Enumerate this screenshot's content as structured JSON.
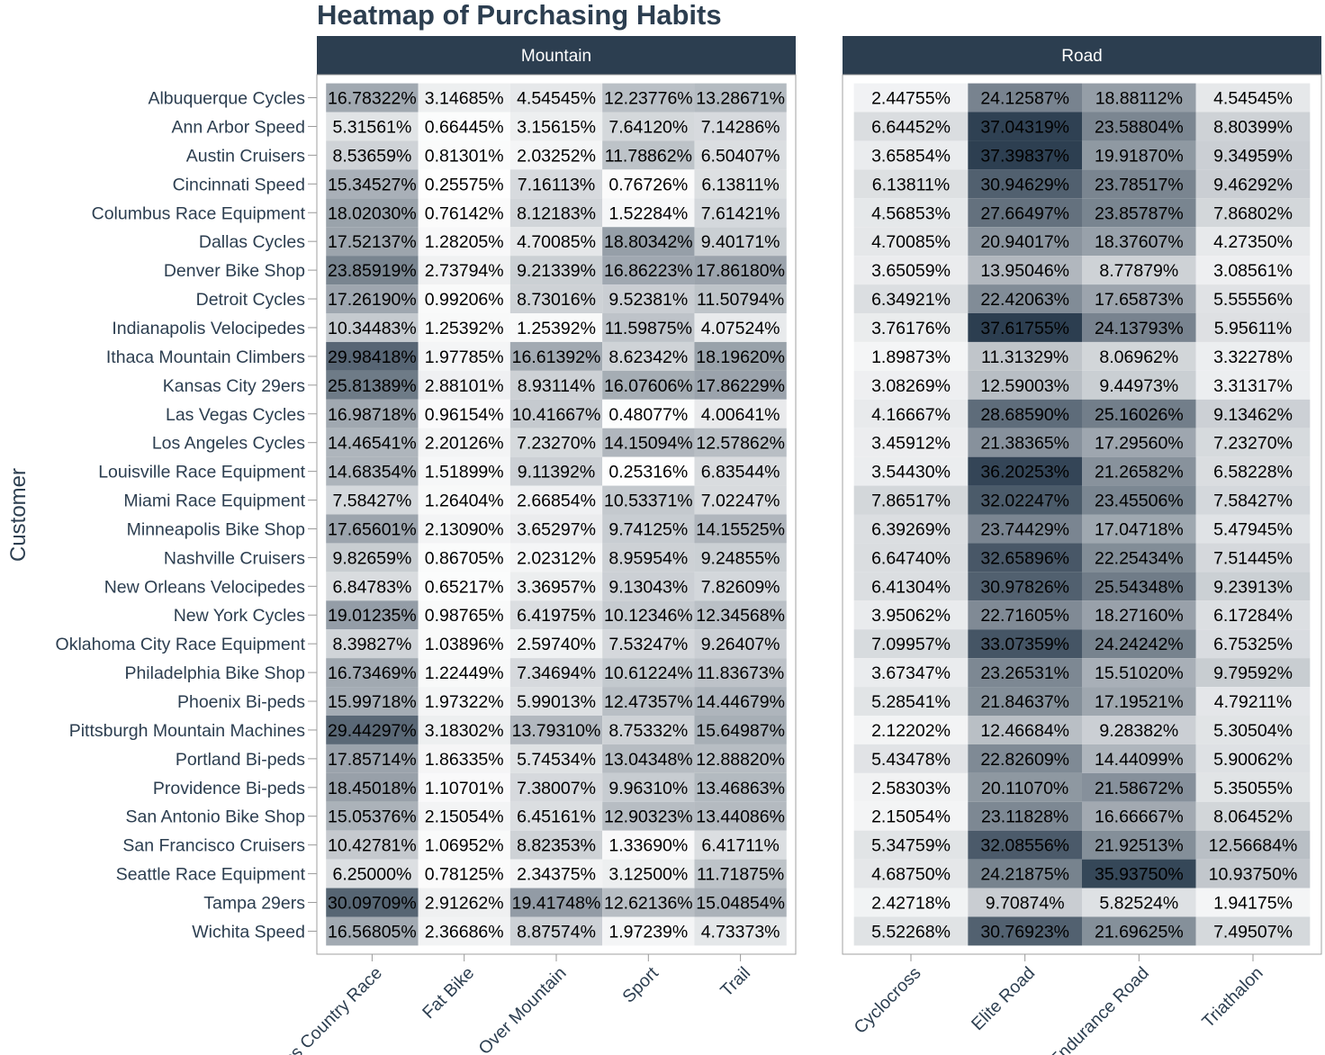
{
  "chart_data": {
    "type": "heatmap",
    "title": "Heatmap of Purchasing Habits",
    "ylabel": "Customer",
    "xlabel": "",
    "colors": {
      "low": "#ffffff",
      "high": "#2c3e50",
      "strip": "#2c3e50",
      "text": "#2c3e50"
    },
    "customers": [
      "Albuquerque Cycles",
      "Ann Arbor Speed",
      "Austin Cruisers",
      "Cincinnati Speed",
      "Columbus Race Equipment",
      "Dallas Cycles",
      "Denver Bike Shop",
      "Detroit Cycles",
      "Indianapolis Velocipedes",
      "Ithaca Mountain Climbers",
      "Kansas City 29ers",
      "Las Vegas Cycles",
      "Los Angeles Cycles",
      "Louisville Race Equipment",
      "Miami Race Equipment",
      "Minneapolis Bike Shop",
      "Nashville Cruisers",
      "New Orleans Velocipedes",
      "New York Cycles",
      "Oklahoma City Race Equipment",
      "Philadelphia Bike Shop",
      "Phoenix Bi-peds",
      "Pittsburgh Mountain Machines",
      "Portland Bi-peds",
      "Providence Bi-peds",
      "San Antonio Bike Shop",
      "San Francisco Cruisers",
      "Seattle Race Equipment",
      "Tampa 29ers",
      "Wichita Speed"
    ],
    "facets": [
      {
        "name": "Mountain",
        "categories": [
          "Cross Country Race",
          "Fat Bike",
          "Over Mountain",
          "Sport",
          "Trail"
        ],
        "rows": [
          [
            "16.78322%",
            "3.14685%",
            "4.54545%",
            "12.23776%",
            "13.28671%"
          ],
          [
            "5.31561%",
            "0.66445%",
            "3.15615%",
            "7.64120%",
            "7.14286%"
          ],
          [
            "8.53659%",
            "0.81301%",
            "2.03252%",
            "11.78862%",
            "6.50407%"
          ],
          [
            "15.34527%",
            "0.25575%",
            "7.16113%",
            "0.76726%",
            "6.13811%"
          ],
          [
            "18.02030%",
            "0.76142%",
            "8.12183%",
            "1.52284%",
            "7.61421%"
          ],
          [
            "17.52137%",
            "1.28205%",
            "4.70085%",
            "18.80342%",
            "9.40171%"
          ],
          [
            "23.85919%",
            "2.73794%",
            "9.21339%",
            "16.86223%",
            "17.86180%"
          ],
          [
            "17.26190%",
            "0.99206%",
            "8.73016%",
            "9.52381%",
            "11.50794%"
          ],
          [
            "10.34483%",
            "1.25392%",
            "1.25392%",
            "11.59875%",
            "4.07524%"
          ],
          [
            "29.98418%",
            "1.97785%",
            "16.61392%",
            "8.62342%",
            "18.19620%"
          ],
          [
            "25.81389%",
            "2.88101%",
            "8.93114%",
            "16.07606%",
            "17.86229%"
          ],
          [
            "16.98718%",
            "0.96154%",
            "10.41667%",
            "0.48077%",
            "4.00641%"
          ],
          [
            "14.46541%",
            "2.20126%",
            "7.23270%",
            "14.15094%",
            "12.57862%"
          ],
          [
            "14.68354%",
            "1.51899%",
            "9.11392%",
            "0.25316%",
            "6.83544%"
          ],
          [
            "7.58427%",
            "1.26404%",
            "2.66854%",
            "10.53371%",
            "7.02247%"
          ],
          [
            "17.65601%",
            "2.13090%",
            "3.65297%",
            "9.74125%",
            "14.15525%"
          ],
          [
            "9.82659%",
            "0.86705%",
            "2.02312%",
            "8.95954%",
            "9.24855%"
          ],
          [
            "6.84783%",
            "0.65217%",
            "3.36957%",
            "9.13043%",
            "7.82609%"
          ],
          [
            "19.01235%",
            "0.98765%",
            "6.41975%",
            "10.12346%",
            "12.34568%"
          ],
          [
            "8.39827%",
            "1.03896%",
            "2.59740%",
            "7.53247%",
            "9.26407%"
          ],
          [
            "16.73469%",
            "1.22449%",
            "7.34694%",
            "10.61224%",
            "11.83673%"
          ],
          [
            "15.99718%",
            "1.97322%",
            "5.99013%",
            "12.47357%",
            "14.44679%"
          ],
          [
            "29.44297%",
            "3.18302%",
            "13.79310%",
            "8.75332%",
            "15.64987%"
          ],
          [
            "17.85714%",
            "1.86335%",
            "5.74534%",
            "13.04348%",
            "12.88820%"
          ],
          [
            "18.45018%",
            "1.10701%",
            "7.38007%",
            "9.96310%",
            "13.46863%"
          ],
          [
            "15.05376%",
            "2.15054%",
            "6.45161%",
            "12.90323%",
            "13.44086%"
          ],
          [
            "10.42781%",
            "1.06952%",
            "8.82353%",
            "1.33690%",
            "6.41711%"
          ],
          [
            "6.25000%",
            "0.78125%",
            "2.34375%",
            "3.12500%",
            "11.71875%"
          ],
          [
            "30.09709%",
            "2.91262%",
            "19.41748%",
            "12.62136%",
            "15.04854%"
          ],
          [
            "16.56805%",
            "2.36686%",
            "8.87574%",
            "1.97239%",
            "4.73373%"
          ]
        ]
      },
      {
        "name": "Road",
        "categories": [
          "Cyclocross",
          "Elite Road",
          "Endurance Road",
          "Triathalon"
        ],
        "rows": [
          [
            "2.44755%",
            "24.12587%",
            "18.88112%",
            "4.54545%"
          ],
          [
            "6.64452%",
            "37.04319%",
            "23.58804%",
            "8.80399%"
          ],
          [
            "3.65854%",
            "37.39837%",
            "19.91870%",
            "9.34959%"
          ],
          [
            "6.13811%",
            "30.94629%",
            "23.78517%",
            "9.46292%"
          ],
          [
            "4.56853%",
            "27.66497%",
            "23.85787%",
            "7.86802%"
          ],
          [
            "4.70085%",
            "20.94017%",
            "18.37607%",
            "4.27350%"
          ],
          [
            "3.65059%",
            "13.95046%",
            "8.77879%",
            "3.08561%"
          ],
          [
            "6.34921%",
            "22.42063%",
            "17.65873%",
            "5.55556%"
          ],
          [
            "3.76176%",
            "37.61755%",
            "24.13793%",
            "5.95611%"
          ],
          [
            "1.89873%",
            "11.31329%",
            "8.06962%",
            "3.32278%"
          ],
          [
            "3.08269%",
            "12.59003%",
            "9.44973%",
            "3.31317%"
          ],
          [
            "4.16667%",
            "28.68590%",
            "25.16026%",
            "9.13462%"
          ],
          [
            "3.45912%",
            "21.38365%",
            "17.29560%",
            "7.23270%"
          ],
          [
            "3.54430%",
            "36.20253%",
            "21.26582%",
            "6.58228%"
          ],
          [
            "7.86517%",
            "32.02247%",
            "23.45506%",
            "7.58427%"
          ],
          [
            "6.39269%",
            "23.74429%",
            "17.04718%",
            "5.47945%"
          ],
          [
            "6.64740%",
            "32.65896%",
            "22.25434%",
            "7.51445%"
          ],
          [
            "6.41304%",
            "30.97826%",
            "25.54348%",
            "9.23913%"
          ],
          [
            "3.95062%",
            "22.71605%",
            "18.27160%",
            "6.17284%"
          ],
          [
            "7.09957%",
            "33.07359%",
            "24.24242%",
            "6.75325%"
          ],
          [
            "3.67347%",
            "23.26531%",
            "15.51020%",
            "9.79592%"
          ],
          [
            "5.28541%",
            "21.84637%",
            "17.19521%",
            "4.79211%"
          ],
          [
            "2.12202%",
            "12.46684%",
            "9.28382%",
            "5.30504%"
          ],
          [
            "5.43478%",
            "22.82609%",
            "14.44099%",
            "5.90062%"
          ],
          [
            "2.58303%",
            "20.11070%",
            "21.58672%",
            "5.35055%"
          ],
          [
            "2.15054%",
            "23.11828%",
            "16.66667%",
            "8.06452%"
          ],
          [
            "5.34759%",
            "32.08556%",
            "21.92513%",
            "12.56684%"
          ],
          [
            "4.68750%",
            "24.21875%",
            "35.93750%",
            "10.93750%"
          ],
          [
            "2.42718%",
            "9.70874%",
            "5.82524%",
            "1.94175%"
          ],
          [
            "5.52268%",
            "30.76923%",
            "21.69625%",
            "7.49507%"
          ]
        ]
      }
    ]
  }
}
